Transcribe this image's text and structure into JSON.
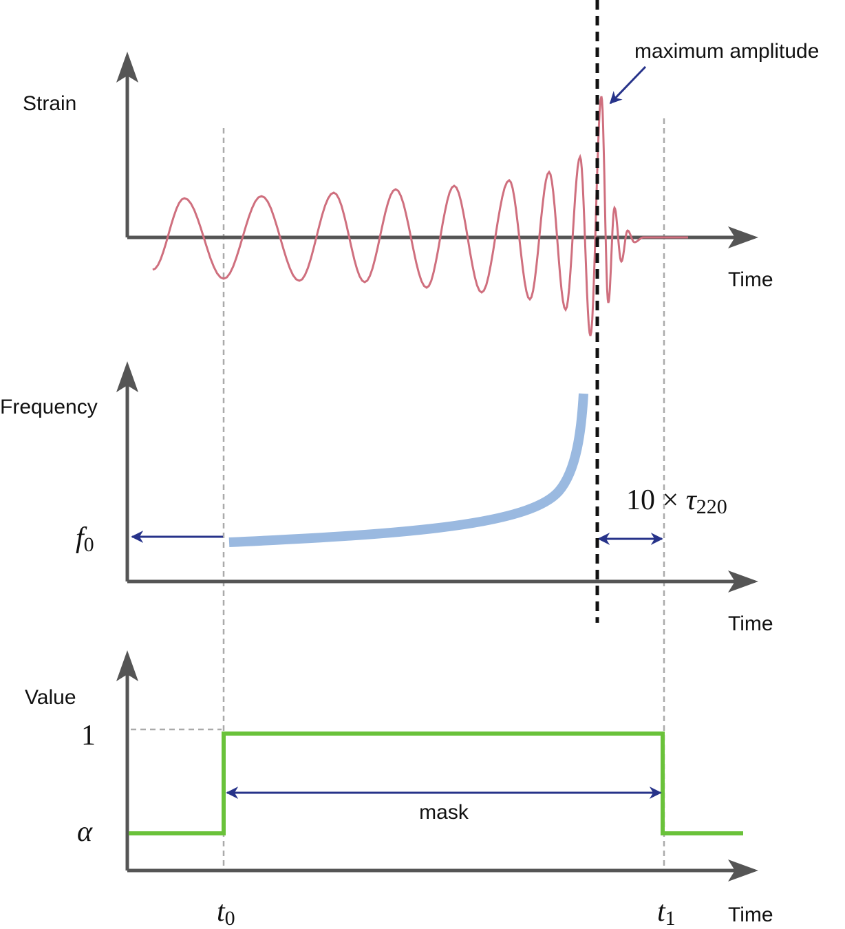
{
  "panels": [
    {
      "y_label": "Strain",
      "x_label": "Time",
      "annotation": "maximum amplitude"
    },
    {
      "y_label": "Frequency",
      "x_label": "Time",
      "start_frequency": {
        "base": "f",
        "sub": "0"
      },
      "ringdown_span": {
        "prefix": "10 × ",
        "base": "τ",
        "sub": "220"
      }
    },
    {
      "y_label": "Value",
      "x_label": "Time",
      "high_level": "1",
      "low_level": "α",
      "mask": "mask",
      "t_start": {
        "base": "t",
        "sub": "0"
      },
      "t_end": {
        "base": "t",
        "sub": "1"
      }
    }
  ]
}
